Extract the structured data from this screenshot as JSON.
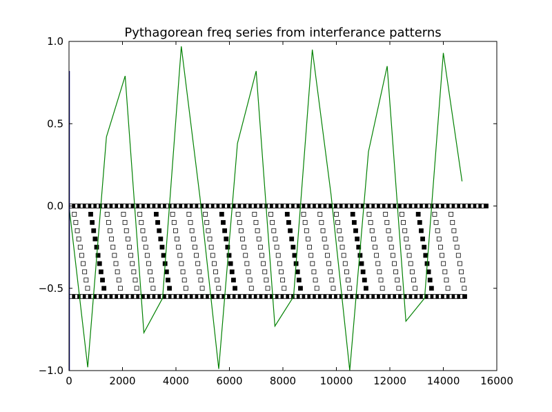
{
  "chart_data": {
    "type": "line",
    "title": "Pythagorean freq series from interferance patterns",
    "xlabel": "",
    "ylabel": "",
    "xlim": [
      0,
      16000
    ],
    "ylim": [
      -1.0,
      1.0
    ],
    "x_ticks": [
      0,
      2000,
      4000,
      6000,
      8000,
      10000,
      12000,
      14000,
      16000
    ],
    "y_ticks": [
      -1.0,
      -0.5,
      0.0,
      0.5,
      1.0
    ],
    "x_tick_labels": [
      "0",
      "2000",
      "4000",
      "6000",
      "8000",
      "10000",
      "12000",
      "14000",
      "16000"
    ],
    "y_tick_labels": [
      "−1.0",
      "−0.5",
      "0.0",
      "0.5",
      "1.0"
    ],
    "grid": false,
    "legend": "none",
    "colors": {
      "line": "#008000",
      "blue_line": "#000080",
      "marker_edge": "#000000",
      "marker_filled": "#000000",
      "marker_open": "#ffffff"
    },
    "series": [
      {
        "type": "line",
        "color": "#008000",
        "x": [
          0,
          700,
          1400,
          2100,
          2800,
          3500,
          4200,
          4900,
          5600,
          6300,
          7000,
          7700,
          8400,
          9100,
          9800,
          10500,
          11200,
          11900,
          12600,
          13300,
          14000,
          14700
        ],
        "y": [
          0.0,
          -0.98,
          0.42,
          0.79,
          -0.77,
          -0.56,
          0.97,
          0.05,
          -0.99,
          0.38,
          0.82,
          -0.73,
          -0.55,
          0.95,
          0.07,
          -1.0,
          0.33,
          0.85,
          -0.7,
          -0.56,
          0.93,
          0.15
        ]
      },
      {
        "type": "line",
        "color": "#000080",
        "x": [
          0,
          0
        ],
        "y": [
          -1.0,
          0.82
        ]
      }
    ],
    "marker_rows": [
      {
        "y": 0.0,
        "x_start": 0,
        "x_end": 15600,
        "step": 100,
        "filled_every": 2
      },
      {
        "y": -0.55,
        "x_start": 0,
        "x_end": 14800,
        "step": 100,
        "filled_every": 2
      }
    ],
    "diagonal_markers": {
      "period": 2450,
      "starts": [
        200,
        2650,
        5100,
        7550,
        10000,
        12450
      ],
      "levels": [
        -0.05,
        -0.1,
        -0.15,
        -0.2,
        -0.25,
        -0.3,
        -0.35,
        -0.4,
        -0.45,
        -0.5
      ]
    }
  }
}
